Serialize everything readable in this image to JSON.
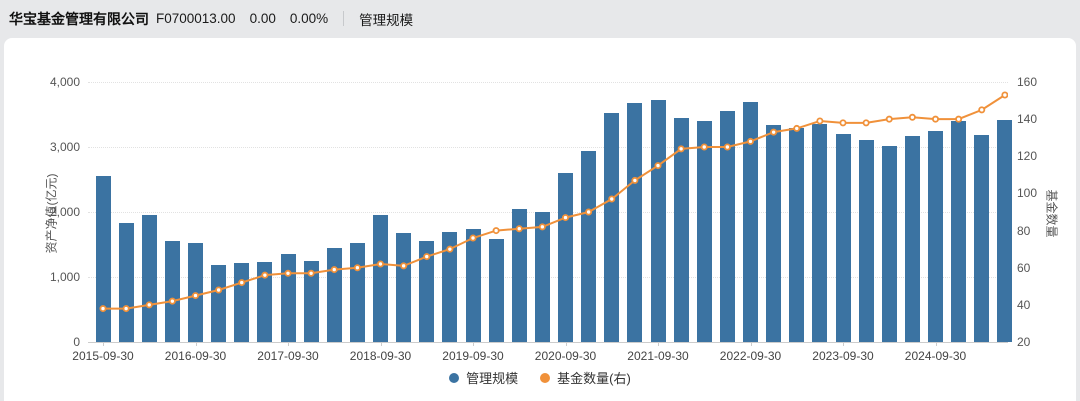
{
  "header": {
    "company": "华宝基金管理有限公司",
    "code": "F0700013.00",
    "price": "0.00",
    "change_pct": "0.00%",
    "tab": "管理规模"
  },
  "colors": {
    "bar": "#3b73a2",
    "line": "#f0913a",
    "header_bg": "#e7e8ea",
    "card_bg": "#ffffff"
  },
  "chart_data": {
    "type": "bar",
    "subtype": "bar+line dual axis, quarterly",
    "categories": [
      "2015-09-30",
      "2015-12-31",
      "2016-03-31",
      "2016-06-30",
      "2016-09-30",
      "2016-12-31",
      "2017-03-31",
      "2017-06-30",
      "2017-09-30",
      "2017-12-31",
      "2018-03-31",
      "2018-06-30",
      "2018-09-30",
      "2018-12-31",
      "2019-03-31",
      "2019-06-30",
      "2019-09-30",
      "2019-12-31",
      "2020-03-31",
      "2020-06-30",
      "2020-09-30",
      "2020-12-31",
      "2021-03-31",
      "2021-06-30",
      "2021-09-30",
      "2021-12-31",
      "2022-03-31",
      "2022-06-30",
      "2022-09-30",
      "2022-12-31",
      "2023-03-31",
      "2023-06-30",
      "2023-09-30",
      "2023-12-31",
      "2024-03-31",
      "2024-06-30",
      "2024-09-30",
      "2024-12-31",
      "2025-03-31",
      "2025-06-30"
    ],
    "x_tick_labels": [
      "2015-09-30",
      "2016-09-30",
      "2017-09-30",
      "2018-09-30",
      "2019-09-30",
      "2020-09-30",
      "2021-09-30",
      "2022-09-30",
      "2023-09-30",
      "2024-09-30"
    ],
    "x_tick_every": 4,
    "series": [
      {
        "name": "管理规模",
        "type": "bar",
        "axis": "left",
        "color": "#3b73a2",
        "values": [
          2560,
          1830,
          1960,
          1560,
          1530,
          1190,
          1210,
          1230,
          1350,
          1240,
          1440,
          1520,
          1950,
          1670,
          1560,
          1700,
          1740,
          1590,
          2040,
          2000,
          2600,
          2940,
          3520,
          3670,
          3720,
          3440,
          3400,
          3560,
          3690,
          3340,
          3300,
          3360,
          3200,
          3110,
          3010,
          3170,
          3250,
          3400,
          3190,
          3420
        ]
      },
      {
        "name": "基金数量(右)",
        "type": "line",
        "axis": "right",
        "color": "#f0913a",
        "values": [
          38,
          38,
          40,
          42,
          45,
          48,
          52,
          56,
          57,
          57,
          59,
          60,
          62,
          61,
          66,
          70,
          76,
          80,
          81,
          82,
          87,
          90,
          97,
          107,
          115,
          124,
          125,
          125,
          128,
          133,
          135,
          139,
          138,
          138,
          140,
          141,
          140,
          140,
          145,
          153
        ]
      }
    ],
    "left_axis": {
      "name": "资产净值(亿元)",
      "min": 0,
      "max": 4000,
      "ticks": [
        "0",
        "1,000",
        "2,000",
        "3,000",
        "4,000"
      ]
    },
    "right_axis": {
      "name": "基金数量",
      "min": 20,
      "max": 160,
      "ticks": [
        "20",
        "40",
        "60",
        "80",
        "100",
        "120",
        "140",
        "160"
      ]
    },
    "legend": [
      "管理规模",
      "基金数量(右)"
    ],
    "legend_position": "bottom-center",
    "grid": "horizontal dotted lines"
  }
}
